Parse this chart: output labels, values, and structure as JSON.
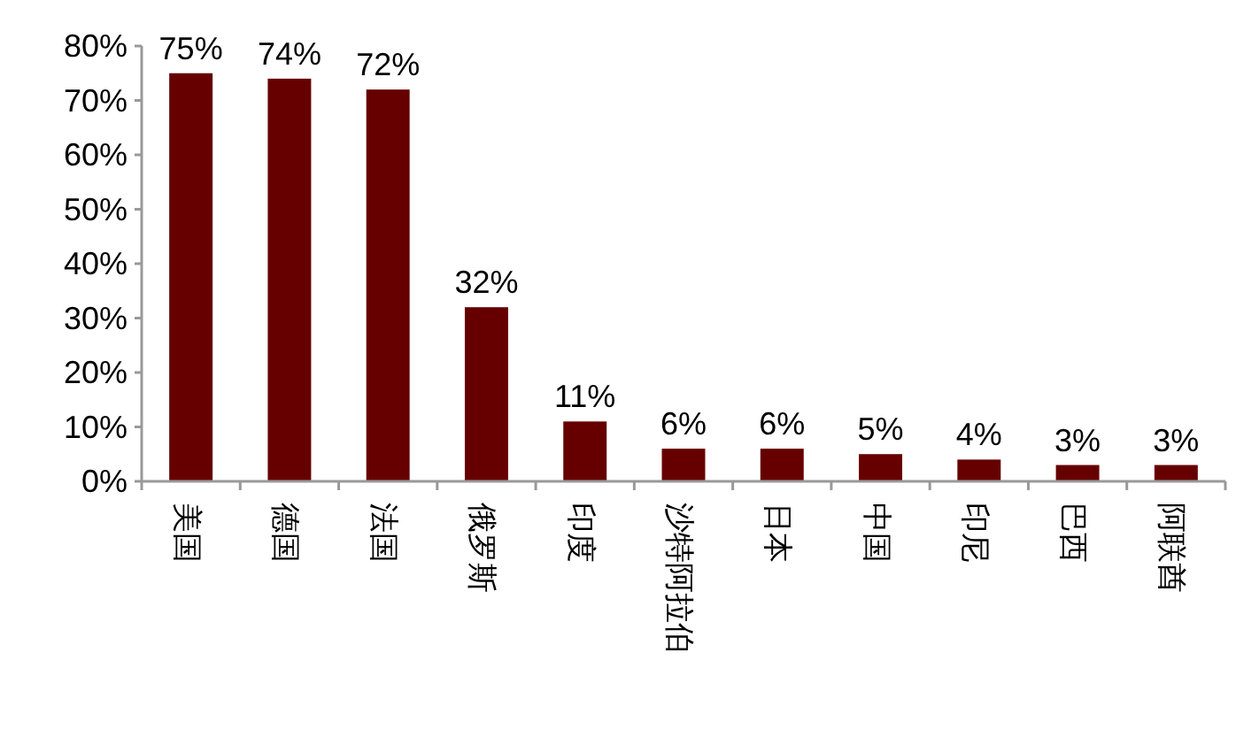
{
  "chart_data": {
    "type": "bar",
    "categories": [
      "美国",
      "德国",
      "法国",
      "俄罗斯",
      "印度",
      "沙特阿拉伯",
      "日本",
      "中国",
      "印尼",
      "巴西",
      "阿联酋"
    ],
    "values": [
      75,
      74,
      72,
      32,
      11,
      6,
      6,
      5,
      4,
      3,
      3
    ],
    "value_labels": [
      "75%",
      "74%",
      "72%",
      "32%",
      "11%",
      "6%",
      "6%",
      "5%",
      "4%",
      "3%",
      "3%"
    ],
    "color": "#660000",
    "ylim": [
      0,
      80
    ],
    "yticks": [
      {
        "value": 0,
        "label": "0%"
      },
      {
        "value": 10,
        "label": "10%"
      },
      {
        "value": 20,
        "label": "20%"
      },
      {
        "value": 30,
        "label": "30%"
      },
      {
        "value": 40,
        "label": "40%"
      },
      {
        "value": 50,
        "label": "50%"
      },
      {
        "value": 60,
        "label": "60%"
      },
      {
        "value": 70,
        "label": "70%"
      },
      {
        "value": 80,
        "label": "80%"
      }
    ],
    "grid": false
  }
}
